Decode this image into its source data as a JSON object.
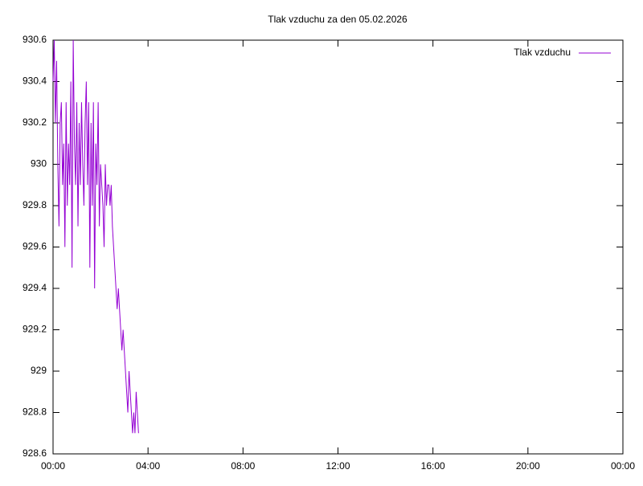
{
  "chart_data": {
    "type": "line",
    "title": "Tlak vzduchu za den 05.02.2026",
    "x": [
      0,
      3,
      6,
      9,
      12,
      15,
      18,
      21,
      24,
      27,
      30,
      33,
      36,
      39,
      42,
      45,
      48,
      51,
      54,
      57,
      60,
      63,
      66,
      69,
      72,
      75,
      78,
      81,
      84,
      87,
      90,
      93,
      96,
      99,
      102,
      105,
      108,
      111,
      114,
      117,
      120,
      123,
      126,
      129,
      132,
      135,
      138,
      141,
      144,
      147,
      150,
      153,
      156,
      159,
      162,
      165,
      168,
      171,
      174,
      177,
      180,
      183,
      186,
      189,
      192,
      195,
      198,
      201,
      204,
      207,
      210,
      213,
      216
    ],
    "series": [
      {
        "name": "Tlak vzduchu",
        "color": "#9400d3",
        "values": [
          930.4,
          930.6,
          930.2,
          930.5,
          930.0,
          929.7,
          930.2,
          930.3,
          929.9,
          930.1,
          929.6,
          930.3,
          929.8,
          930.1,
          929.9,
          930.4,
          929.5,
          930.6,
          930.1,
          929.9,
          930.3,
          929.7,
          930.2,
          929.9,
          930.3,
          930.0,
          929.8,
          930.2,
          930.4,
          929.9,
          930.3,
          929.5,
          930.2,
          929.8,
          930.3,
          929.4,
          930.1,
          929.9,
          930.3,
          929.7,
          930.0,
          929.9,
          929.8,
          929.6,
          930.0,
          929.8,
          929.9,
          929.9,
          929.8,
          929.9,
          929.7,
          929.6,
          929.5,
          929.4,
          929.3,
          929.4,
          929.3,
          929.2,
          929.1,
          929.2,
          929.1,
          929.0,
          928.9,
          928.8,
          929.0,
          928.9,
          928.8,
          928.7,
          928.8,
          928.7,
          928.9,
          928.8,
          928.7
        ]
      }
    ],
    "xlim": [
      0,
      1440
    ],
    "xticks": [
      {
        "value": 0,
        "label": "00:00"
      },
      {
        "value": 240,
        "label": "04:00"
      },
      {
        "value": 480,
        "label": "08:00"
      },
      {
        "value": 720,
        "label": "12:00"
      },
      {
        "value": 960,
        "label": "16:00"
      },
      {
        "value": 1200,
        "label": "20:00"
      },
      {
        "value": 1440,
        "label": "00:00"
      }
    ],
    "ylim": [
      928.6,
      930.6
    ],
    "yticks": [
      928.6,
      928.8,
      929,
      929.2,
      929.4,
      929.6,
      929.8,
      930,
      930.2,
      930.4,
      930.6
    ],
    "legend": "top-right"
  }
}
